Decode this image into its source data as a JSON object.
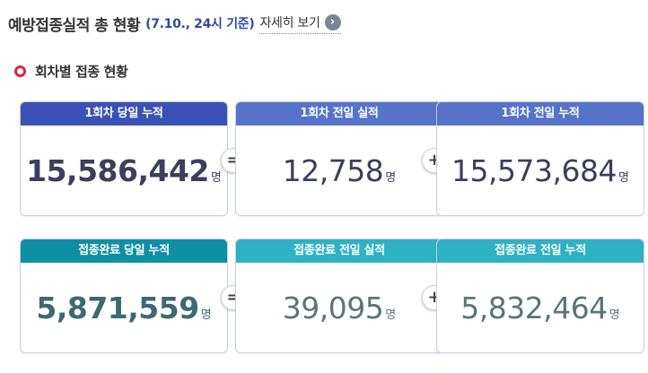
{
  "header": {
    "title": "예방접종실적 총 현황",
    "date": "(7.10., 24시 기준)",
    "detail_label": "자세히 보기",
    "detail_icon": "chevron-right-icon"
  },
  "section": {
    "title": "회차별 접종 현황",
    "icon": "circle-icon",
    "icon_color": "#d9263b"
  },
  "rows": [
    {
      "cards": [
        {
          "label": "1회차 당일 누적",
          "value": "15,586,442",
          "unit": "명"
        },
        {
          "label": "1회차 전일 실적",
          "value": "12,758",
          "unit": "명"
        },
        {
          "label": "1회차 전일 누적",
          "value": "15,573,684",
          "unit": "명"
        }
      ],
      "operators": [
        "=",
        "+"
      ],
      "colors": {
        "primary": "#3a52b5",
        "secondary": "#5673c9"
      }
    },
    {
      "cards": [
        {
          "label": "접종완료 당일 누적",
          "value": "5,871,559",
          "unit": "명"
        },
        {
          "label": "접종완료 전일 실적",
          "value": "39,095",
          "unit": "명"
        },
        {
          "label": "접종완료 전일 누적",
          "value": "5,832,464",
          "unit": "명"
        }
      ],
      "operators": [
        "=",
        "+"
      ],
      "colors": {
        "primary": "#0f8fa3",
        "secondary": "#2db1c3"
      }
    }
  ]
}
